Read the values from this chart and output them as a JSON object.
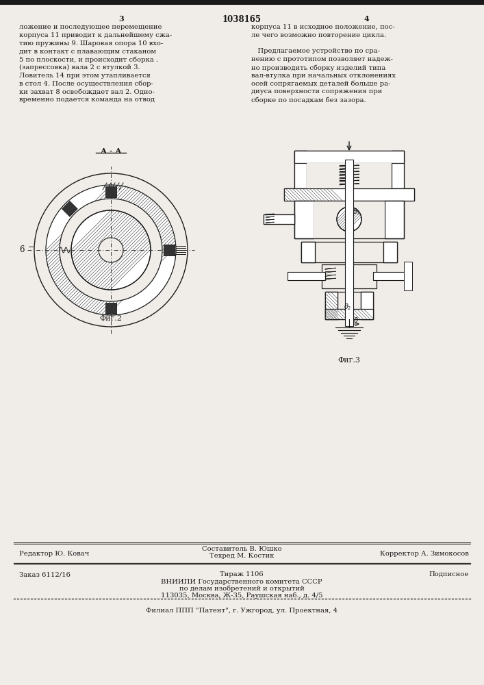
{
  "page_number_left": "3",
  "page_number_center": "1038165",
  "page_number_right": "4",
  "bg_color": "#f0ede8",
  "text_color": "#1a1a1a",
  "hatch_color": "#444444",
  "left_column_text": [
    "ложение и последующее перемещение",
    "корпуса 11 приводит к дальнейшему сжа-",
    "тию пружины 9. Шаровая опора 10 вхо-",
    "дит в контакт с плавающим стаканом",
    "5 по плоскости, и происходит сборка .",
    "(запрессовка) вала 2 с втулкой 3.",
    "Ловитель 14 при этом утапливается",
    "в стол 4. После осуществления сбор-",
    "ки захват 8 освобождает вал 2. Одно-",
    "временно подается команда на отвод"
  ],
  "right_column_text_1": [
    "корпуса 11 в исходное положение, пос-",
    "ле чего возможно повторение цикла."
  ],
  "right_column_text_2": [
    "   Предлагаемое устройство по сра-",
    "нению с прототипом позволяет надеж-",
    "но производить сборку изделий типа",
    "вал-втулка при начальных отклонениях",
    "осей сопрягаемых деталей больше ра-",
    "диуса поверхности сопряжения при",
    "сборке по посадкам без зазора."
  ],
  "fig2_label": "А - А",
  "fig2_caption": "Фиг.2",
  "fig3_caption": "Фиг.3",
  "label_6": "6",
  "editor_line": "Редактор Ю. Ковач",
  "composer_line": "Составитель В. Юшко",
  "techred_line": "Техред М. Костик",
  "corrector_line": "Корректор А. Зимокосов",
  "order_line": "Заказ 6112/16",
  "circulation_line": "Тираж 1106",
  "subscription_line": "Подписное",
  "vniipi_line": "ВНИИПИ Государственного комитета СССР",
  "affairs_line": "по делам изобретений и открытий",
  "address_line": "113035, Москва, Ж-35, Раушская наб., д. 4/5",
  "patent_line": "Филиал ППП \"Патент\", г. Ужгород, ул. Проектная, 4",
  "top_bar_color": "#1a1a1a",
  "separator_color": "#1a1a1a"
}
